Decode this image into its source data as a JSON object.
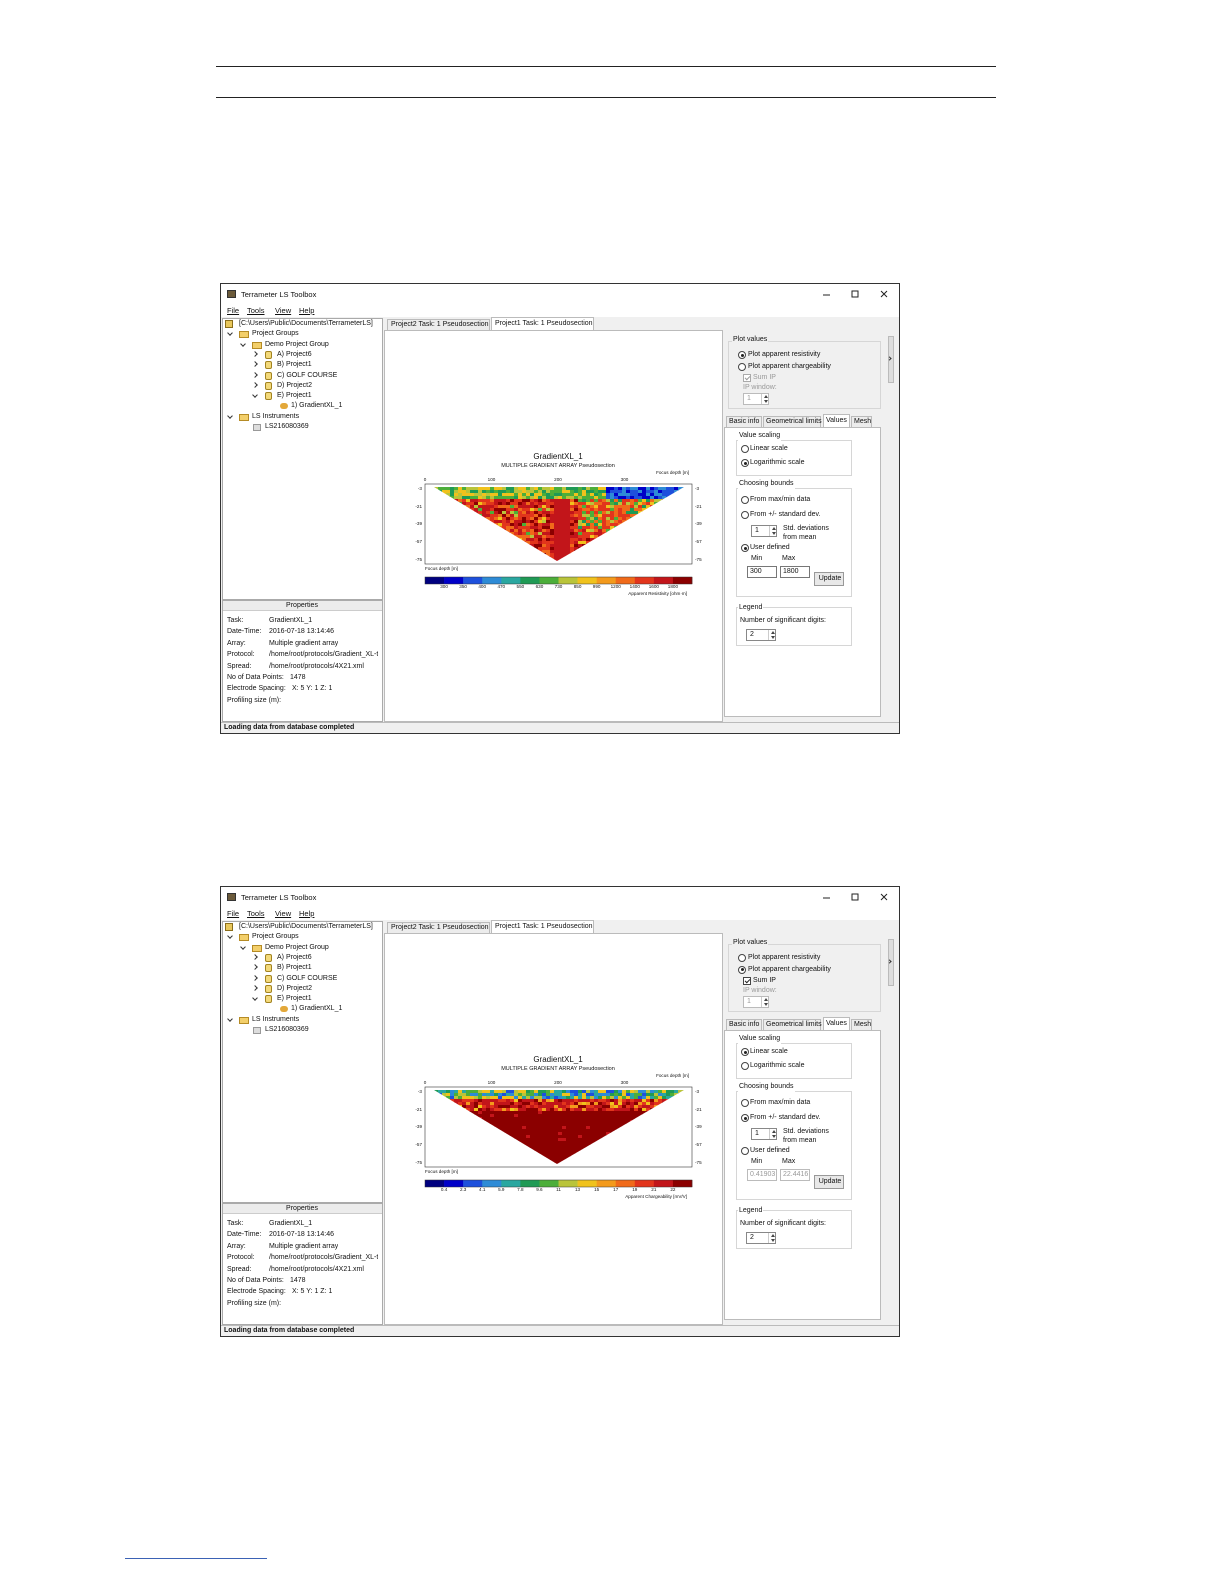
{
  "windows": [
    {
      "title": "Terrameter LS Toolbox",
      "menu": [
        "File",
        "Tools",
        "View",
        "Help"
      ],
      "tree": [
        "[C:\\Users\\Public\\Documents\\TerrameterLS]",
        "Project Groups",
        "Demo Project Group",
        "A) Project6",
        "B) Project1",
        "C) GOLF COURSE",
        "D) Project2",
        "E) Project1",
        "1) GradientXL_1",
        "LS Instruments",
        "LS216080369"
      ],
      "properties_title": "Properties",
      "properties": [
        [
          "Task:",
          "GradientXL_1"
        ],
        [
          "Date-Time:",
          "2016-07-18 13:14:46"
        ],
        [
          "Array:",
          "Multiple gradient array"
        ],
        [
          "Protocol:",
          "/home/root/protocols/Gradient_XL-t"
        ],
        [
          "Spread:",
          "/home/root/protocols/4X21.xml"
        ],
        [
          "No of Data Points:",
          "1478"
        ],
        [
          "Electrode Spacing:",
          "X: 5   Y: 1   Z: 1"
        ],
        [
          "Profiling size (m):"
        ]
      ],
      "status": "Loading data from database completed",
      "doc_tabs": [
        "Project2 Task: 1 Pseudosection",
        "Project1 Task: 1 Pseudosection"
      ],
      "active_doc_tab": 1,
      "plot": {
        "title": "GradientXL_1",
        "subtitle": "MULTIPLE GRADIENT ARRAY Pseudosection",
        "depth_label": "Focus depth [m]",
        "x_labels": [
          "0",
          "100",
          "200",
          "300"
        ],
        "y_labels": [
          "-3",
          "-21",
          "-39",
          "-57",
          "-75"
        ],
        "colorbar_labels": [
          "300",
          "350",
          "400",
          "470",
          "550",
          "630",
          "730",
          "850",
          "990",
          "1200",
          "1400",
          "1600",
          "1800"
        ],
        "colorbar_unit": "Apparent Resistivity [ohm·m]",
        "colorbar_colors": [
          "#00007f",
          "#0000c8",
          "#1e50dc",
          "#2e8bd6",
          "#2aa7a0",
          "#1f9a55",
          "#4cae3a",
          "#b9c43a",
          "#f0c21c",
          "#f39a1c",
          "#f06a1a",
          "#e2351c",
          "#c2151a",
          "#8b0000"
        ]
      },
      "plot_values": {
        "title": "Plot values",
        "options": [
          "Plot apparent resistivity",
          "Plot apparent chargeability"
        ],
        "selected": 0,
        "sum_ip": "Sum IP",
        "sum_ip_checked": true,
        "sum_ip_enabled": false,
        "ip_window": "IP window:",
        "ip_window_value": "1"
      },
      "tabs": [
        "Basic info",
        "Geometrical limits",
        "Values",
        "Mesh"
      ],
      "active_tab": 2,
      "value_scaling": {
        "title": "Value scaling",
        "options": [
          "Linear scale",
          "Logarithmic scale"
        ],
        "selected": 1
      },
      "bounds": {
        "title": "Choosing bounds",
        "options": [
          "From max/min data",
          "From +/- standard dev.",
          "User defined"
        ],
        "selected": 2,
        "std_value": "1",
        "std_label": [
          "Std. deviations",
          "from mean"
        ],
        "min_label": "Min",
        "max_label": "Max",
        "min": "300",
        "max": "1800",
        "minmax_enabled": true,
        "update": "Update"
      },
      "legend": {
        "title": "Legend",
        "digits_label": "Number of significant digits:",
        "digits": "2"
      }
    },
    {
      "title": "Terrameter LS Toolbox",
      "menu": [
        "File",
        "Tools",
        "View",
        "Help"
      ],
      "tree": [
        "[C:\\Users\\Public\\Documents\\TerrameterLS]",
        "Project Groups",
        "Demo Project Group",
        "A) Project6",
        "B) Project1",
        "C) GOLF COURSE",
        "D) Project2",
        "E) Project1",
        "1) GradientXL_1",
        "LS Instruments",
        "LS216080369"
      ],
      "properties_title": "Properties",
      "properties": [
        [
          "Task:",
          "GradientXL_1"
        ],
        [
          "Date-Time:",
          "2016-07-18 13:14:46"
        ],
        [
          "Array:",
          "Multiple gradient array"
        ],
        [
          "Protocol:",
          "/home/root/protocols/Gradient_XL-t"
        ],
        [
          "Spread:",
          "/home/root/protocols/4X21.xml"
        ],
        [
          "No of Data Points:",
          "1478"
        ],
        [
          "Electrode Spacing:",
          "X: 5   Y: 1   Z: 1"
        ],
        [
          "Profiling size (m):"
        ]
      ],
      "status": "Loading data from database completed",
      "doc_tabs": [
        "Project2 Task: 1 Pseudosection",
        "Project1 Task: 1 Pseudosection"
      ],
      "active_doc_tab": 1,
      "plot": {
        "title": "GradientXL_1",
        "subtitle": "MULTIPLE GRADIENT ARRAY Pseudosection",
        "depth_label": "Focus depth [m]",
        "x_labels": [
          "0",
          "100",
          "200",
          "300"
        ],
        "y_labels": [
          "-3",
          "-21",
          "-39",
          "-57",
          "-75"
        ],
        "colorbar_labels": [
          "0.4",
          "2.3",
          "4.1",
          "5.9",
          "7.8",
          "9.6",
          "11",
          "13",
          "15",
          "17",
          "19",
          "21",
          "22"
        ],
        "colorbar_unit": "Apparent Chargeability [mV/V]",
        "colorbar_colors": [
          "#00007f",
          "#0000c8",
          "#1e50dc",
          "#2e8bd6",
          "#2aa7a0",
          "#1f9a55",
          "#4cae3a",
          "#b9c43a",
          "#f0c21c",
          "#f39a1c",
          "#f06a1a",
          "#e2351c",
          "#c2151a",
          "#8b0000"
        ]
      },
      "plot_values": {
        "title": "Plot values",
        "options": [
          "Plot apparent resistivity",
          "Plot apparent chargeability"
        ],
        "selected": 1,
        "sum_ip": "Sum IP",
        "sum_ip_checked": true,
        "sum_ip_enabled": true,
        "ip_window": "IP window:",
        "ip_window_value": "1"
      },
      "tabs": [
        "Basic info",
        "Geometrical limits",
        "Values",
        "Mesh"
      ],
      "active_tab": 2,
      "value_scaling": {
        "title": "Value scaling",
        "options": [
          "Linear scale",
          "Logarithmic scale"
        ],
        "selected": 0
      },
      "bounds": {
        "title": "Choosing bounds",
        "options": [
          "From max/min data",
          "From +/- standard dev.",
          "User defined"
        ],
        "selected": 1,
        "std_value": "1",
        "std_label": [
          "Std. deviations",
          "from mean"
        ],
        "min_label": "Min",
        "max_label": "Max",
        "min": "0.41903",
        "max": "22.4416",
        "minmax_enabled": false,
        "update": "Update"
      },
      "legend": {
        "title": "Legend",
        "digits_label": "Number of significant digits:",
        "digits": "2"
      }
    }
  ]
}
